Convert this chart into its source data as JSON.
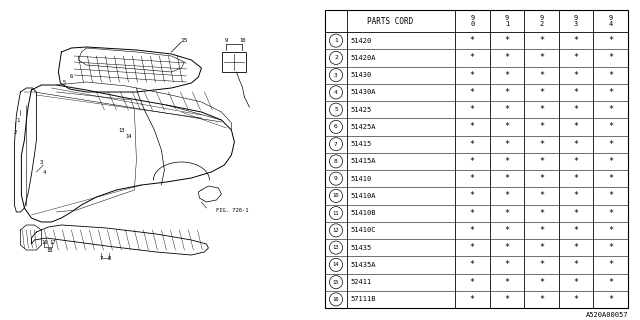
{
  "bg_color": "#ffffff",
  "line_color": "#000000",
  "text_color": "#000000",
  "table_header": "PARTS CORD",
  "year_cols": [
    "9\n0",
    "9\n1",
    "9\n2",
    "9\n3",
    "9\n4"
  ],
  "parts": [
    {
      "num": 1,
      "code": "51420"
    },
    {
      "num": 2,
      "code": "51420A"
    },
    {
      "num": 3,
      "code": "51430"
    },
    {
      "num": 4,
      "code": "51430A"
    },
    {
      "num": 5,
      "code": "51425"
    },
    {
      "num": 6,
      "code": "51425A"
    },
    {
      "num": 7,
      "code": "51415"
    },
    {
      "num": 8,
      "code": "51415A"
    },
    {
      "num": 9,
      "code": "51410"
    },
    {
      "num": 10,
      "code": "51410A"
    },
    {
      "num": 11,
      "code": "51410B"
    },
    {
      "num": 12,
      "code": "51410C"
    },
    {
      "num": 13,
      "code": "51435"
    },
    {
      "num": 14,
      "code": "51435A"
    },
    {
      "num": 15,
      "code": "52411"
    },
    {
      "num": 16,
      "code": "57111B"
    }
  ],
  "star": "*",
  "footnote": "A520A00057",
  "fig_label": "FIG. 720-1"
}
